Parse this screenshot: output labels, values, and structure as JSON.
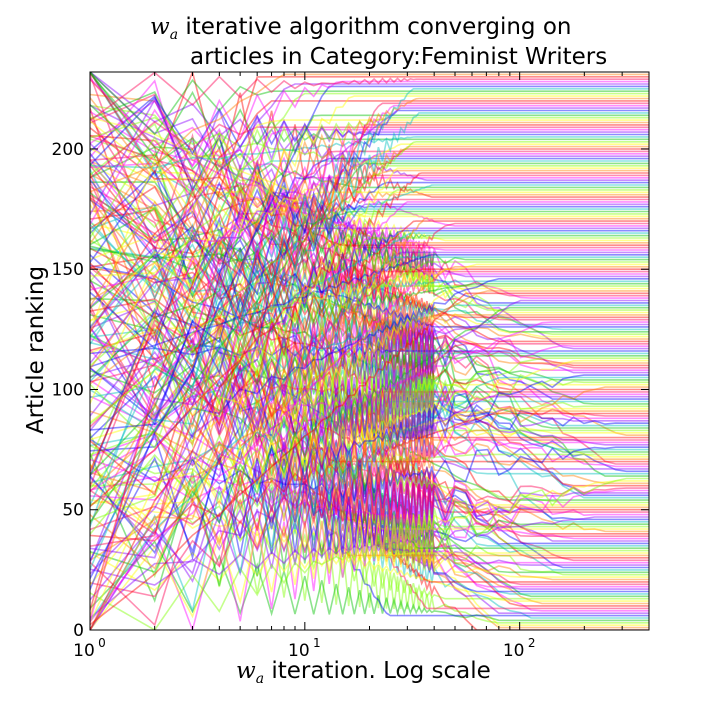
{
  "title": {
    "math_var": "w",
    "math_sub": "a",
    "line1_rest": "iterative algorithm converging on",
    "line2": "articles in Category:Feminist Writers"
  },
  "xlabel": {
    "math_var": "w",
    "math_sub": "a",
    "rest": "iteration. Log scale"
  },
  "ylabel": "Article ranking",
  "chart_data": {
    "type": "line",
    "title": "w_a iterative algorithm converging on articles in Category:Feminist Writers",
    "xlabel": "w_a iteration. Log scale",
    "ylabel": "Article ranking",
    "xscale": "log",
    "xlim": [
      1,
      400
    ],
    "ylim": [
      0,
      232
    ],
    "xticks": [
      {
        "value": 1,
        "base": "10",
        "exp": "0"
      },
      {
        "value": 10,
        "base": "10",
        "exp": "1"
      },
      {
        "value": 100,
        "base": "10",
        "exp": "2"
      }
    ],
    "yticks": [
      0,
      50,
      100,
      150,
      200
    ],
    "grid": false,
    "legend": "none",
    "n_series": 232,
    "series_description": "one line per article; each article's rank oscillates in early iterations and settles to a fixed rank by ~iteration 60-400",
    "colormap": [
      "#ff0000",
      "#ff7f00",
      "#ffff00",
      "#7fff00",
      "#00c000",
      "#00bfbf",
      "#0000ff",
      "#8a00ff",
      "#ff00ff",
      "#ff0055"
    ],
    "line_alpha": 0.45
  }
}
